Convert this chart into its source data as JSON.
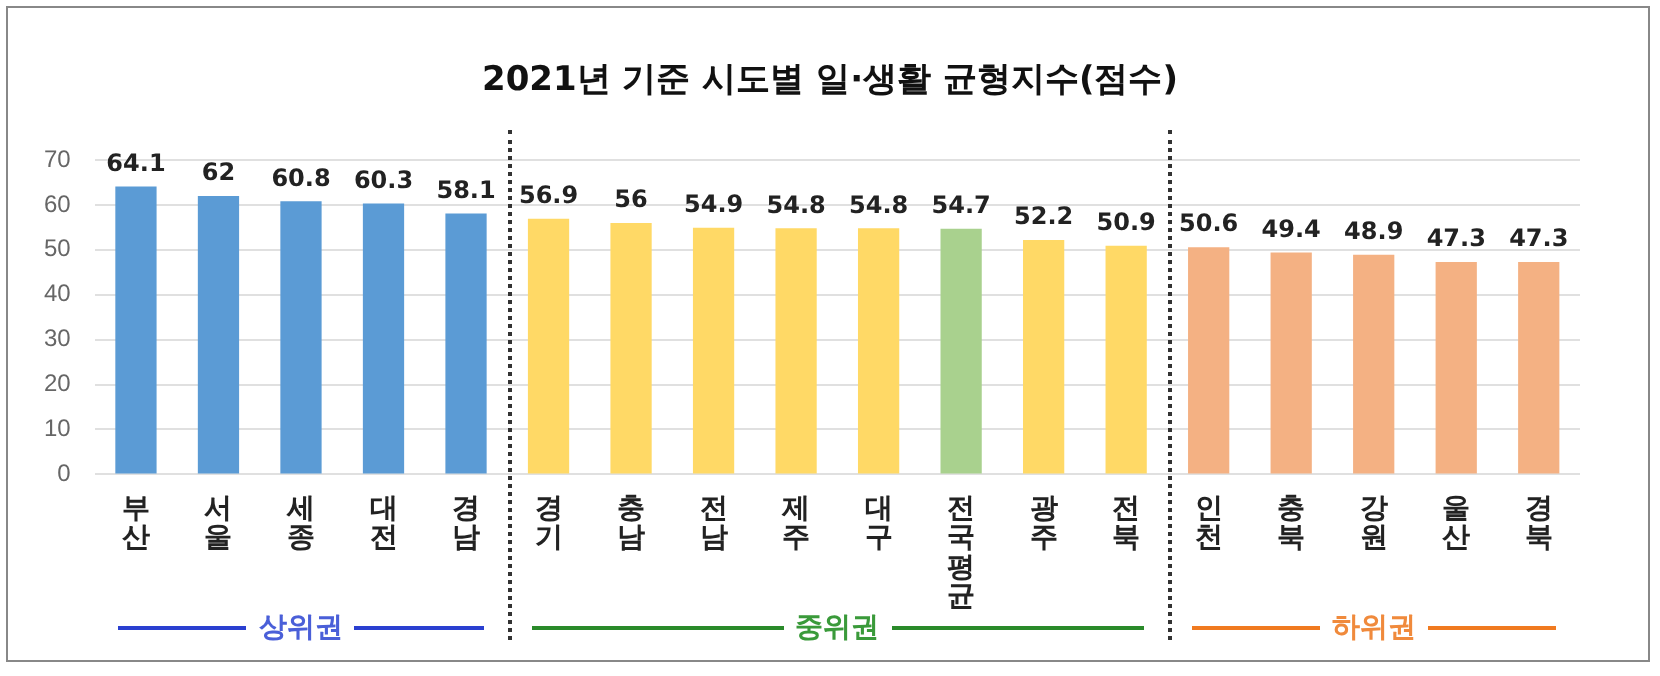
{
  "chart_data": {
    "type": "bar",
    "title": "2021년 기준 시도별 일·생활 균형지수(점수)",
    "categories": [
      "부산",
      "서울",
      "세종",
      "대전",
      "경남",
      "경기",
      "충남",
      "전남",
      "제주",
      "대구",
      "전국평균",
      "광주",
      "전북",
      "인천",
      "충북",
      "강원",
      "울산",
      "경북"
    ],
    "values": [
      64.1,
      62,
      60.8,
      60.3,
      58.1,
      56.9,
      56,
      54.9,
      54.8,
      54.8,
      54.7,
      52.2,
      50.9,
      50.6,
      49.4,
      48.9,
      47.3,
      47.3
    ],
    "colors": [
      "#5b9bd5",
      "#5b9bd5",
      "#5b9bd5",
      "#5b9bd5",
      "#5b9bd5",
      "#ffd966",
      "#ffd966",
      "#ffd966",
      "#ffd966",
      "#ffd966",
      "#a9d18e",
      "#ffd966",
      "#ffd966",
      "#f4b183",
      "#f4b183",
      "#f4b183",
      "#f4b183",
      "#f4b183"
    ],
    "ylim": [
      0,
      70
    ],
    "yticks": [
      0,
      10,
      20,
      30,
      40,
      50,
      60,
      70
    ],
    "grid": "y",
    "legend": false,
    "data_labels": true,
    "annotations": [
      "상위권",
      "중위권",
      "하위권"
    ]
  }
}
